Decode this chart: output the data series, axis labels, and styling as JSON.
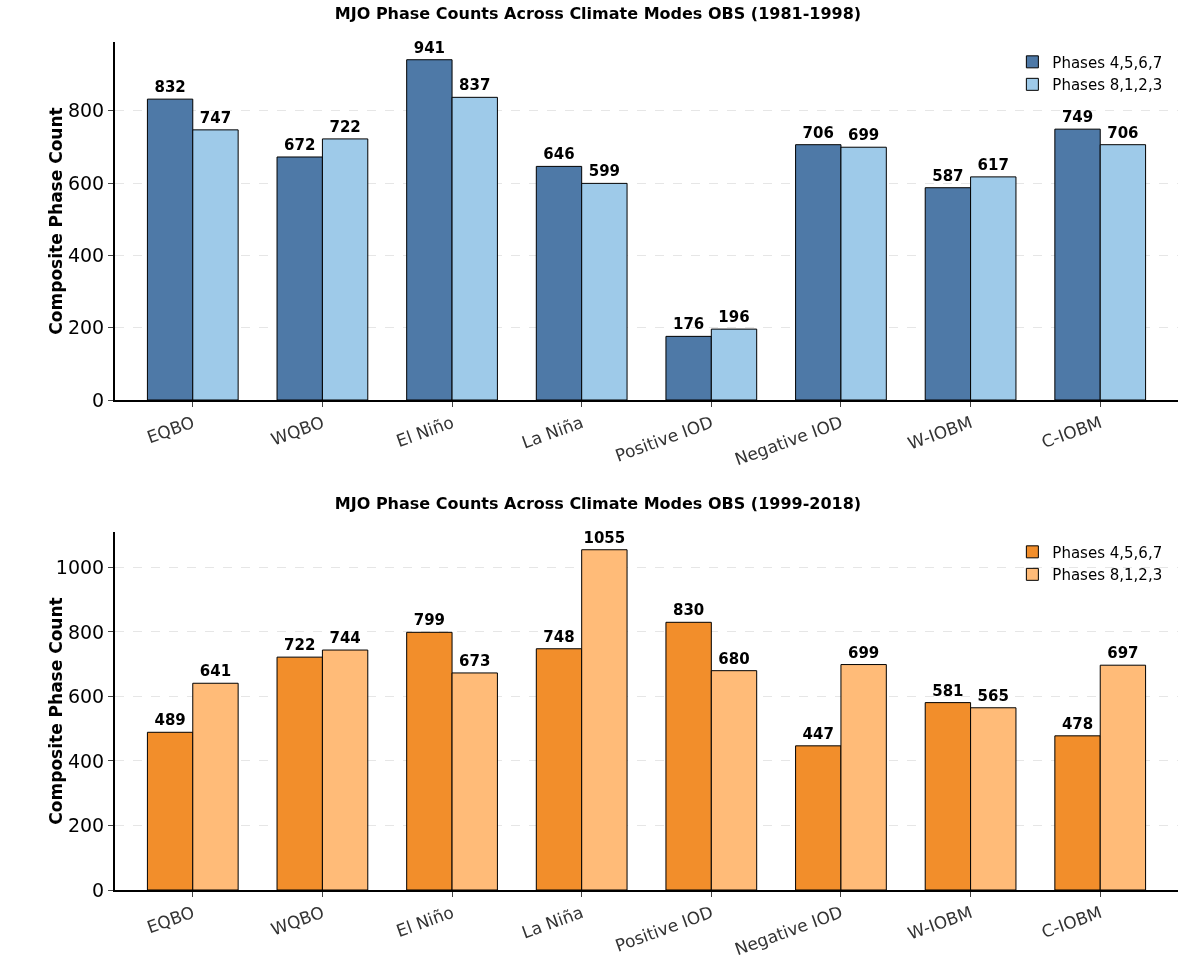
{
  "chart_data": [
    {
      "type": "bar",
      "title": "MJO Phase Counts Across Climate Modes OBS (1981-1998)",
      "ylabel": "Composite Phase Count",
      "categories": [
        "EQBO",
        "WQBO",
        "El Niño",
        "La Niña",
        "Positive IOD",
        "Negative IOD",
        "W-IOBM",
        "C-IOBM"
      ],
      "series": [
        {
          "name": "Phases 4,5,6,7",
          "color": "#4e79a7",
          "values": [
            832,
            672,
            941,
            646,
            176,
            706,
            587,
            749
          ]
        },
        {
          "name": "Phases 8,1,2,3",
          "color": "#9ecae9",
          "values": [
            747,
            722,
            837,
            599,
            196,
            699,
            617,
            706
          ]
        }
      ],
      "ylim": [
        0,
        990
      ],
      "yticks": [
        0,
        200,
        400,
        600,
        800
      ],
      "grid": "y",
      "legend": "top right",
      "data_labels": true
    },
    {
      "type": "bar",
      "title": "MJO Phase Counts Across Climate Modes OBS (1999-2018)",
      "ylabel": "Composite Phase Count",
      "categories": [
        "EQBO",
        "WQBO",
        "El Niño",
        "La Niña",
        "Positive IOD",
        "Negative IOD",
        "W-IOBM",
        "C-IOBM"
      ],
      "series": [
        {
          "name": "Phases 4,5,6,7",
          "color": "#f28e2b",
          "values": [
            489,
            722,
            799,
            748,
            830,
            447,
            581,
            478
          ]
        },
        {
          "name": "Phases 8,1,2,3",
          "color": "#ffbb78",
          "values": [
            641,
            744,
            673,
            1055,
            680,
            699,
            565,
            697
          ]
        }
      ],
      "ylim": [
        0,
        1110
      ],
      "yticks": [
        0,
        200,
        400,
        600,
        800,
        1000
      ],
      "grid": "y",
      "legend": "top right",
      "data_labels": true
    }
  ]
}
